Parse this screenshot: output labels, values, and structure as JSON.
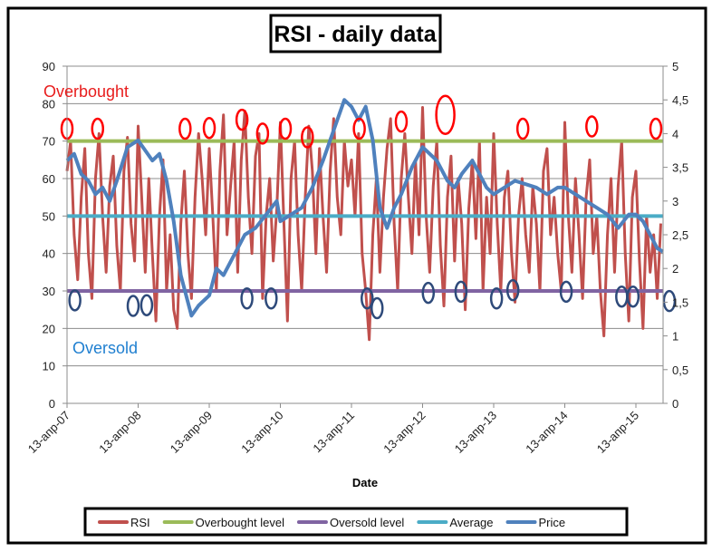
{
  "chart_data": {
    "type": "line",
    "title": "RSI - daily data",
    "xlabel": "Date",
    "ylabel_left": "",
    "ylabel_right": "",
    "ylim_left": [
      0,
      90
    ],
    "ylim_right": [
      0,
      5
    ],
    "left_ticks": [
      "0",
      "10",
      "20",
      "30",
      "40",
      "50",
      "60",
      "70",
      "80",
      "90"
    ],
    "right_ticks": [
      "0",
      "0,5",
      "1",
      "1,5",
      "2",
      "2,5",
      "3",
      "3,5",
      "4",
      "4,5",
      "5"
    ],
    "x_tick_labels": [
      "13-апр-07",
      "13-апр-08",
      "13-апр-09",
      "13-апр-10",
      "13-апр-11",
      "13-апр-12",
      "13-апр-13",
      "13-апр-14",
      "13-апр-15"
    ],
    "x_range_years": [
      0,
      8.38
    ],
    "grid": "horizontal",
    "legend_position": "bottom",
    "colors": {
      "rsi": "#c0504d",
      "overbought": "#9bbb59",
      "oversold": "#8064a2",
      "average": "#4bacc6",
      "price": "#4f81bd",
      "overbought_mark": "#ff0000",
      "oversold_mark": "#2e4a7a",
      "overbought_text": "#e81c1c",
      "oversold_text": "#1f7fd0"
    },
    "series": [
      {
        "name": "RSI",
        "axis": "left",
        "step_years": 0.05,
        "values": [
          62,
          70,
          45,
          33,
          55,
          68,
          40,
          28,
          60,
          72,
          50,
          35,
          58,
          66,
          42,
          30,
          62,
          71,
          48,
          38,
          74,
          55,
          35,
          60,
          40,
          22,
          50,
          65,
          30,
          45,
          25,
          20,
          48,
          62,
          40,
          28,
          55,
          72,
          60,
          45,
          68,
          50,
          30,
          62,
          77,
          45,
          58,
          70,
          35,
          65,
          78,
          55,
          40,
          66,
          72,
          28,
          50,
          60,
          38,
          52,
          75,
          48,
          22,
          60,
          70,
          45,
          30,
          55,
          74,
          62,
          40,
          68,
          50,
          35,
          62,
          76,
          55,
          45,
          70,
          58,
          65,
          50,
          72,
          40,
          30,
          17,
          45,
          60,
          35,
          55,
          68,
          76,
          48,
          30,
          60,
          72,
          55,
          40,
          65,
          45,
          79,
          50,
          35,
          58,
          70,
          42,
          26,
          55,
          66,
          38,
          60,
          48,
          25,
          52,
          65,
          44,
          70,
          30,
          55,
          40,
          72,
          48,
          30,
          55,
          62,
          40,
          27,
          50,
          60,
          45,
          35,
          58,
          48,
          30,
          62,
          68,
          45,
          55,
          40,
          30,
          75,
          50,
          35,
          60,
          45,
          28,
          55,
          65,
          40,
          50,
          30,
          18,
          45,
          60,
          35,
          58,
          70,
          40,
          22,
          55,
          62,
          38,
          20,
          50,
          35,
          45,
          28,
          48
        ]
      },
      {
        "name": "Overbought level",
        "axis": "left",
        "constant": 70
      },
      {
        "name": "Oversold level",
        "axis": "left",
        "constant": 30
      },
      {
        "name": "Average",
        "axis": "left",
        "constant": 50
      },
      {
        "name": "Price",
        "axis": "right",
        "points": [
          [
            0,
            3.6
          ],
          [
            0.1,
            3.7
          ],
          [
            0.2,
            3.4
          ],
          [
            0.3,
            3.3
          ],
          [
            0.4,
            3.1
          ],
          [
            0.5,
            3.2
          ],
          [
            0.6,
            3.0
          ],
          [
            0.7,
            3.3
          ],
          [
            0.85,
            3.8
          ],
          [
            1.0,
            3.9
          ],
          [
            1.1,
            3.75
          ],
          [
            1.2,
            3.6
          ],
          [
            1.3,
            3.7
          ],
          [
            1.4,
            3.3
          ],
          [
            1.5,
            2.7
          ],
          [
            1.6,
            1.9
          ],
          [
            1.7,
            1.5
          ],
          [
            1.75,
            1.3
          ],
          [
            1.85,
            1.45
          ],
          [
            2.0,
            1.6
          ],
          [
            2.1,
            2.0
          ],
          [
            2.2,
            1.9
          ],
          [
            2.35,
            2.2
          ],
          [
            2.5,
            2.5
          ],
          [
            2.65,
            2.6
          ],
          [
            2.8,
            2.8
          ],
          [
            2.95,
            3.0
          ],
          [
            3.0,
            2.7
          ],
          [
            3.15,
            2.8
          ],
          [
            3.3,
            2.9
          ],
          [
            3.45,
            3.2
          ],
          [
            3.6,
            3.6
          ],
          [
            3.7,
            3.9
          ],
          [
            3.8,
            4.2
          ],
          [
            3.9,
            4.5
          ],
          [
            4.0,
            4.4
          ],
          [
            4.1,
            4.2
          ],
          [
            4.2,
            4.4
          ],
          [
            4.3,
            3.9
          ],
          [
            4.4,
            2.9
          ],
          [
            4.5,
            2.6
          ],
          [
            4.6,
            2.9
          ],
          [
            4.7,
            3.1
          ],
          [
            4.85,
            3.5
          ],
          [
            5.0,
            3.8
          ],
          [
            5.1,
            3.7
          ],
          [
            5.2,
            3.6
          ],
          [
            5.35,
            3.3
          ],
          [
            5.45,
            3.2
          ],
          [
            5.55,
            3.4
          ],
          [
            5.7,
            3.6
          ],
          [
            5.8,
            3.4
          ],
          [
            5.9,
            3.2
          ],
          [
            6.0,
            3.1
          ],
          [
            6.15,
            3.2
          ],
          [
            6.3,
            3.3
          ],
          [
            6.45,
            3.25
          ],
          [
            6.6,
            3.2
          ],
          [
            6.75,
            3.1
          ],
          [
            6.9,
            3.2
          ],
          [
            7.0,
            3.2
          ],
          [
            7.15,
            3.1
          ],
          [
            7.3,
            3.0
          ],
          [
            7.45,
            2.9
          ],
          [
            7.6,
            2.8
          ],
          [
            7.75,
            2.6
          ],
          [
            7.9,
            2.8
          ],
          [
            8.0,
            2.8
          ],
          [
            8.1,
            2.7
          ],
          [
            8.2,
            2.5
          ],
          [
            8.3,
            2.3
          ],
          [
            8.38,
            2.25
          ]
        ]
      }
    ],
    "annotations": {
      "overbought_label": "Overbought",
      "oversold_label": "Oversold",
      "overbought_marks": [
        [
          0,
          73.3
        ],
        [
          0.43,
          73.3
        ],
        [
          1.66,
          73.3
        ],
        [
          2.0,
          73.5
        ],
        [
          2.46,
          75.7
        ],
        [
          2.75,
          72
        ],
        [
          3.07,
          73.3
        ],
        [
          3.38,
          71
        ],
        [
          4.11,
          73.3
        ],
        [
          4.7,
          75.2
        ],
        [
          5.32,
          77,
          "large"
        ],
        [
          6.41,
          73.3
        ],
        [
          7.38,
          73.9
        ],
        [
          8.28,
          73.3
        ]
      ],
      "oversold_marks": [
        [
          0.11,
          27.5
        ],
        [
          0.93,
          26
        ],
        [
          1.12,
          26.2
        ],
        [
          2.53,
          28
        ],
        [
          2.87,
          28
        ],
        [
          4.22,
          28
        ],
        [
          4.36,
          25.4
        ],
        [
          5.08,
          29.5
        ],
        [
          5.54,
          29.8
        ],
        [
          6.04,
          28
        ],
        [
          6.27,
          30.2
        ],
        [
          7.02,
          29.8
        ],
        [
          7.8,
          28.5
        ],
        [
          7.96,
          28.5
        ],
        [
          8.47,
          27.3
        ]
      ]
    }
  }
}
